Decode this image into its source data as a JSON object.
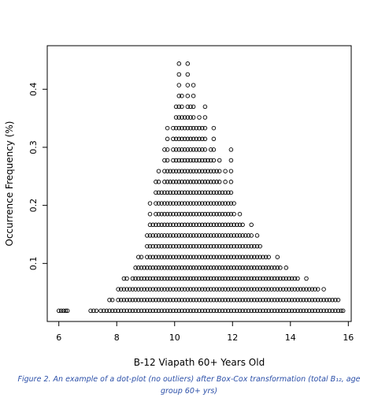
{
  "caption": "Figure 2. An example of  a dot-plot (no outliers) after Box-Cox transformation (total B₁₂, age group 60+ yrs)",
  "chart_data": {
    "type": "scatter",
    "title": "",
    "xlabel": "B-12 Viapath 60+ Years Old",
    "ylabel": "Occurrence Frequency (%)",
    "xlim": [
      5.6,
      16.1
    ],
    "ylim": [
      0.0,
      0.475
    ],
    "xticks": [
      6,
      8,
      10,
      12,
      14,
      16
    ],
    "yticks": [
      0.1,
      0.2,
      0.3,
      0.4
    ],
    "xtick_labels": [
      "6",
      "8",
      "10",
      "12",
      "14",
      "16"
    ],
    "ytick_labels": [
      "0.1",
      "0.2",
      "0.3",
      "0.4"
    ],
    "grid": false,
    "legend": "none",
    "marker": "open-circle",
    "color": "#000000",
    "bin_width": 0.08,
    "point_step": 0.0185,
    "columns": [
      {
        "x": 6.0,
        "n": 1
      },
      {
        "x": 6.08,
        "n": 1
      },
      {
        "x": 6.16,
        "n": 1
      },
      {
        "x": 6.24,
        "n": 1
      },
      {
        "x": 6.3,
        "n": 1
      },
      {
        "x": 7.1,
        "n": 1
      },
      {
        "x": 7.2,
        "n": 1
      },
      {
        "x": 7.3,
        "n": 1
      },
      {
        "x": 7.45,
        "n": 1
      },
      {
        "x": 7.55,
        "n": 1
      },
      {
        "x": 7.65,
        "n": 1
      },
      {
        "x": 7.75,
        "n": 2
      },
      {
        "x": 7.85,
        "n": 2
      },
      {
        "x": 7.95,
        "n": 1
      },
      {
        "x": 8.05,
        "n": 3
      },
      {
        "x": 8.15,
        "n": 3
      },
      {
        "x": 8.25,
        "n": 4
      },
      {
        "x": 8.35,
        "n": 4
      },
      {
        "x": 8.45,
        "n": 3
      },
      {
        "x": 8.55,
        "n": 4
      },
      {
        "x": 8.65,
        "n": 5
      },
      {
        "x": 8.75,
        "n": 6
      },
      {
        "x": 8.85,
        "n": 6
      },
      {
        "x": 8.95,
        "n": 5
      },
      {
        "x": 9.05,
        "n": 8
      },
      {
        "x": 9.15,
        "n": 11
      },
      {
        "x": 9.25,
        "n": 9
      },
      {
        "x": 9.35,
        "n": 13
      },
      {
        "x": 9.45,
        "n": 14
      },
      {
        "x": 9.55,
        "n": 12
      },
      {
        "x": 9.65,
        "n": 16
      },
      {
        "x": 9.75,
        "n": 18
      },
      {
        "x": 9.85,
        "n": 14
      },
      {
        "x": 9.95,
        "n": 18
      },
      {
        "x": 10.05,
        "n": 20
      },
      {
        "x": 10.15,
        "n": 24
      },
      {
        "x": 10.25,
        "n": 21
      },
      {
        "x": 10.35,
        "n": 19
      },
      {
        "x": 10.45,
        "n": 24
      },
      {
        "x": 10.55,
        "n": 20
      },
      {
        "x": 10.65,
        "n": 22
      },
      {
        "x": 10.75,
        "n": 18
      },
      {
        "x": 10.85,
        "n": 19
      },
      {
        "x": 10.95,
        "n": 18
      },
      {
        "x": 11.05,
        "n": 20
      },
      {
        "x": 11.15,
        "n": 15
      },
      {
        "x": 11.25,
        "n": 16
      },
      {
        "x": 11.35,
        "n": 18
      },
      {
        "x": 11.45,
        "n": 14
      },
      {
        "x": 11.55,
        "n": 15
      },
      {
        "x": 11.65,
        "n": 12
      },
      {
        "x": 11.75,
        "n": 14
      },
      {
        "x": 11.85,
        "n": 12
      },
      {
        "x": 11.95,
        "n": 16
      },
      {
        "x": 12.05,
        "n": 11
      },
      {
        "x": 12.15,
        "n": 9
      },
      {
        "x": 12.25,
        "n": 10
      },
      {
        "x": 12.35,
        "n": 9
      },
      {
        "x": 12.45,
        "n": 8
      },
      {
        "x": 12.55,
        "n": 8
      },
      {
        "x": 12.65,
        "n": 9
      },
      {
        "x": 12.75,
        "n": 7
      },
      {
        "x": 12.85,
        "n": 8
      },
      {
        "x": 12.95,
        "n": 7
      },
      {
        "x": 13.05,
        "n": 6
      },
      {
        "x": 13.15,
        "n": 6
      },
      {
        "x": 13.25,
        "n": 6
      },
      {
        "x": 13.35,
        "n": 5
      },
      {
        "x": 13.45,
        "n": 5
      },
      {
        "x": 13.55,
        "n": 6
      },
      {
        "x": 13.65,
        "n": 5
      },
      {
        "x": 13.75,
        "n": 4
      },
      {
        "x": 13.85,
        "n": 5
      },
      {
        "x": 13.95,
        "n": 4
      },
      {
        "x": 14.05,
        "n": 4
      },
      {
        "x": 14.15,
        "n": 4
      },
      {
        "x": 14.25,
        "n": 4
      },
      {
        "x": 14.35,
        "n": 3
      },
      {
        "x": 14.45,
        "n": 3
      },
      {
        "x": 14.55,
        "n": 4
      },
      {
        "x": 14.65,
        "n": 3
      },
      {
        "x": 14.75,
        "n": 3
      },
      {
        "x": 14.85,
        "n": 3
      },
      {
        "x": 14.95,
        "n": 3
      },
      {
        "x": 15.05,
        "n": 2
      },
      {
        "x": 15.15,
        "n": 3
      },
      {
        "x": 15.25,
        "n": 2
      },
      {
        "x": 15.35,
        "n": 2
      },
      {
        "x": 15.45,
        "n": 2
      },
      {
        "x": 15.55,
        "n": 2
      },
      {
        "x": 15.65,
        "n": 2
      },
      {
        "x": 15.75,
        "n": 1
      },
      {
        "x": 15.82,
        "n": 1
      }
    ]
  }
}
